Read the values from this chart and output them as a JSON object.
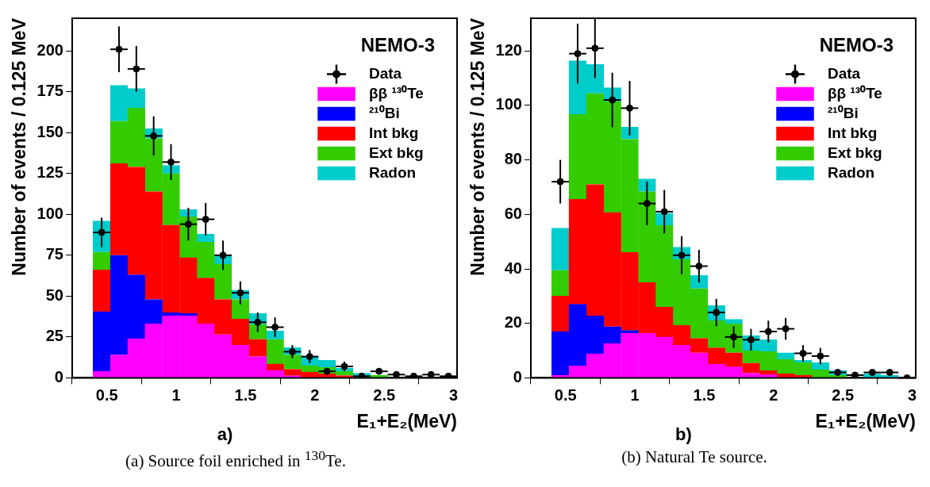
{
  "chart_data": [
    {
      "type": "bar",
      "stacked": true,
      "legend": "top right",
      "xlabel": "E₁+E₂(MeV)",
      "ylabel": "Number of events / 0.125 MeV",
      "annotations": [
        "NEMO-3",
        "a)",
        "(a) Source foil enriched in $^{130}$Te."
      ],
      "xlim": [
        0.25,
        3.025
      ],
      "xticks": [
        0.5,
        1,
        1.5,
        2,
        2.5,
        3
      ],
      "ylim": [
        0,
        220
      ],
      "yticks": [
        0,
        25,
        50,
        75,
        100,
        125,
        150,
        175,
        200
      ],
      "x": [
        0.4625,
        0.5875,
        0.7125,
        0.8375,
        0.9625,
        1.0875,
        1.2125,
        1.3375,
        1.4625,
        1.5875,
        1.7125,
        1.8375,
        1.9625,
        2.0875,
        2.2125,
        2.3375,
        2.4625,
        2.5875,
        2.7125,
        2.8375,
        2.9625
      ],
      "series": [
        {
          "name": "ββ ¹³⁰Te",
          "color": "#ff00ff",
          "values": [
            4,
            14,
            24,
            33,
            38,
            38,
            33,
            26.5,
            20,
            13,
            4.6,
            1.3,
            null,
            null,
            null,
            null,
            null,
            null,
            null,
            null,
            null
          ]
        },
        {
          "name": "²¹⁰Bi",
          "color": "#0000ff",
          "values": [
            36.5,
            61,
            39,
            15,
            2,
            1.5,
            null,
            null,
            null,
            null,
            null,
            null,
            null,
            null,
            null,
            null,
            null,
            null,
            null,
            null,
            null
          ]
        },
        {
          "name": "Int bkg",
          "color": "#ff0000",
          "values": [
            25.5,
            56,
            66,
            66,
            53.5,
            34,
            28,
            21.5,
            16,
            10.6,
            3.9,
            4,
            3.5,
            2.4,
            1.4,
            null,
            null,
            null,
            null,
            null,
            null
          ]
        },
        {
          "name": "Ext bkg",
          "color": "#33cc00",
          "values": [
            11,
            26,
            36,
            32.5,
            31.5,
            25,
            22,
            21.5,
            12,
            9.2,
            15.1,
            8.7,
            4,
            4,
            2.6,
            null,
            1.5,
            null,
            null,
            null,
            null
          ]
        },
        {
          "name": "Radon",
          "color": "#00cccc",
          "values": [
            19,
            22,
            12,
            6,
            5,
            4.5,
            5,
            5,
            5.6,
            6.7,
            5.1,
            4.5,
            5.9,
            4.3,
            1.9,
            2.8,
            null,
            null,
            null,
            null,
            null
          ]
        },
        {
          "name": "Data",
          "type": "scatter",
          "marker": "circle",
          "color": "#000000",
          "values": [
            89,
            201,
            189,
            148,
            132,
            94,
            97,
            75,
            52,
            34,
            31,
            16,
            13,
            4,
            7,
            1,
            4,
            2,
            1,
            2,
            1
          ],
          "errors": [
            9,
            14,
            14,
            12,
            11,
            10,
            10,
            9,
            7,
            6,
            6,
            4,
            4,
            2,
            3,
            null,
            null,
            null,
            null,
            null,
            null
          ],
          "xerrors": [
            0.0625,
            0.0625,
            0.0625,
            0.0625,
            0.0625,
            0.0625,
            0.0625,
            0.0625,
            0.0625,
            0.0625,
            0.0625,
            0.0625,
            0.0625,
            0.0625,
            0.0625,
            0.0625,
            0.0625,
            0.0625,
            0.0625,
            0.0625,
            0.0625
          ]
        }
      ]
    },
    {
      "type": "bar",
      "stacked": true,
      "legend": "top right",
      "xlabel": "E₁+E₂(MeV)",
      "ylabel": "Number of events / 0.125 MeV",
      "annotations": [
        "NEMO-3",
        "b)",
        "(b) Natural Te source."
      ],
      "xlim": [
        0.25,
        3.025
      ],
      "xticks": [
        0.5,
        1,
        1.5,
        2,
        2.5,
        3
      ],
      "ylim": [
        0,
        132
      ],
      "yticks": [
        0,
        20,
        40,
        60,
        80,
        100,
        120
      ],
      "x": [
        0.4625,
        0.5875,
        0.7125,
        0.8375,
        0.9625,
        1.0875,
        1.2125,
        1.3375,
        1.4625,
        1.5875,
        1.7125,
        1.8375,
        1.9625,
        2.0875,
        2.2125,
        2.3375,
        2.4625,
        2.5875,
        2.7125,
        2.8375,
        2.9625
      ],
      "series": [
        {
          "name": "ββ ¹³⁰Te",
          "color": "#ff00ff",
          "values": [
            1,
            4.4,
            8.8,
            12.6,
            16.4,
            16.4,
            15,
            12,
            9.2,
            5,
            4,
            1.7,
            1.2,
            null,
            null,
            null,
            null,
            null,
            null,
            null,
            null
          ]
        },
        {
          "name": "²¹⁰Bi",
          "color": "#0000ff",
          "values": [
            16,
            22.6,
            13.9,
            6.2,
            1,
            null,
            null,
            null,
            null,
            null,
            null,
            null,
            null,
            null,
            null,
            null,
            null,
            null,
            null,
            null,
            null
          ]
        },
        {
          "name": "Int bkg",
          "color": "#ff0000",
          "values": [
            13,
            38.5,
            48.3,
            41.9,
            28.6,
            18.6,
            11,
            7.3,
            5.3,
            6,
            5.2,
            3.7,
            1.5,
            1.5,
            1,
            null,
            null,
            null,
            null,
            null,
            null
          ]
        },
        {
          "name": "Ext bkg",
          "color": "#33cc00",
          "values": [
            9.5,
            31.2,
            33.4,
            40.8,
            41.6,
            33.4,
            30,
            24.1,
            18.3,
            10,
            10.6,
            4.6,
            6.9,
            5.3,
            4.6,
            3,
            1,
            null,
            null,
            null,
            null
          ]
        },
        {
          "name": "Radon",
          "color": "#00cccc",
          "values": [
            15.5,
            19.7,
            10.6,
            5,
            4.4,
            4.6,
            4.4,
            4.6,
            4.8,
            5.5,
            1.7,
            5.5,
            4.4,
            2.4,
            0.9,
            2.6,
            1.7,
            null,
            1.5,
            1,
            null
          ]
        },
        {
          "name": "Data",
          "type": "scatter",
          "marker": "circle",
          "color": "#000000",
          "values": [
            72,
            119,
            121,
            102,
            99,
            64,
            61,
            45,
            41,
            24,
            15,
            14,
            17,
            18,
            9,
            8,
            2,
            1,
            2,
            2,
            0
          ],
          "errors": [
            8,
            11,
            11,
            10,
            10,
            8,
            8,
            7,
            6,
            5,
            4,
            4,
            4,
            4,
            3,
            3,
            null,
            null,
            null,
            null,
            null
          ],
          "xerrors": [
            0.0625,
            0.0625,
            0.0625,
            0.0625,
            0.0625,
            0.0625,
            0.0625,
            0.0625,
            0.0625,
            0.0625,
            0.0625,
            0.0625,
            0.0625,
            0.0625,
            0.0625,
            0.0625,
            0.0625,
            0.0625,
            0.0625,
            0.0625,
            0.0625
          ]
        }
      ]
    }
  ]
}
